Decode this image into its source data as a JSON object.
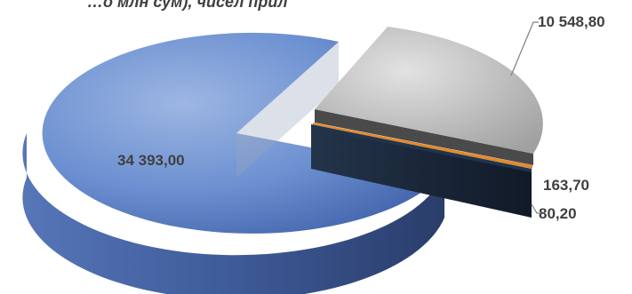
{
  "chart_data": {
    "type": "pie",
    "title": "…о млн сум), чисел прил",
    "labels": [
      "34 393,00",
      "10 548,80",
      "163,70",
      "80,20"
    ],
    "values": [
      34393.0,
      10548.8,
      163.7,
      80.2
    ],
    "colors": [
      "#4a6aad",
      "#7f7f7f",
      "#e38a2b",
      "#1e3550"
    ],
    "exploded": [
      false,
      true,
      true,
      true
    ],
    "three_d": true,
    "legend": "none"
  }
}
